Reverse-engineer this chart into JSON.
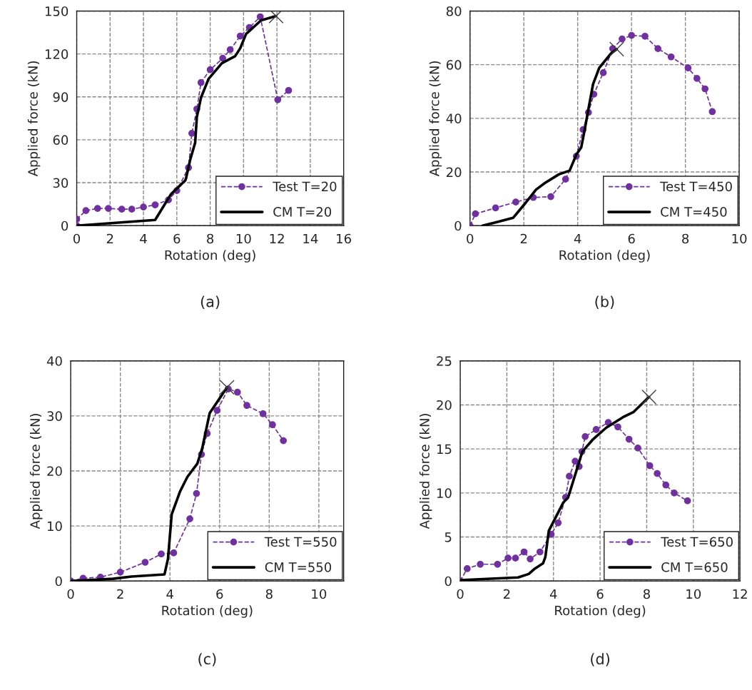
{
  "chart_data": [
    {
      "type": "line",
      "xlabel": "Rotation (deg)",
      "ylabel": "Applied force (kN)",
      "annotations": [
        "(a)"
      ],
      "xlim": [
        0,
        16
      ],
      "xticks": [
        0,
        2,
        4,
        6,
        8,
        10,
        12,
        14,
        16
      ],
      "ylim": [
        0,
        150
      ],
      "yticks": [
        0,
        30,
        60,
        90,
        120,
        150
      ],
      "grid": true,
      "legend": "bottom right",
      "series": [
        {
          "name": "Test T=20",
          "color": "#7030a0",
          "marker": "circle",
          "line_style": "dashed",
          "x": [
            0,
            0,
            0.55,
            1.25,
            1.9,
            2.7,
            3.3,
            4.0,
            4.7,
            5.5,
            6.0,
            6.7,
            6.9,
            7.2,
            7.45,
            8.0,
            8.75,
            9.2,
            9.8,
            10.35,
            11.0,
            12.05,
            12.7
          ],
          "values": [
            0,
            4.5,
            10.5,
            12,
            12,
            11.5,
            11.5,
            13,
            14.5,
            18,
            24.5,
            40.5,
            64.5,
            81.5,
            100,
            109,
            117,
            123,
            132.5,
            138.5,
            146,
            88,
            94.5
          ]
        },
        {
          "name": "CM T=20",
          "color": "#000000",
          "marker": "none",
          "line_style": "solid",
          "x": [
            0,
            4.7,
            5.65,
            6.5,
            6.55,
            6.8,
            7.1,
            7.2,
            7.45,
            7.9,
            8.7,
            9.5,
            9.8,
            10.15,
            11.05,
            11.95
          ],
          "values": [
            0,
            4,
            22,
            31.5,
            33,
            46,
            58,
            76,
            89.5,
            102.5,
            113.5,
            118.5,
            124,
            134,
            143.5,
            146.5
          ]
        },
        {
          "type": "scatter",
          "color": "#404040",
          "marker": "cross",
          "x": [
            11.95
          ],
          "values": [
            146.5
          ]
        }
      ]
    },
    {
      "type": "line",
      "xlabel": "Rotation (deg)",
      "ylabel": "Applied force (kN)",
      "annotations": [
        "(b)"
      ],
      "xlim": [
        0,
        10
      ],
      "xticks": [
        0,
        2,
        4,
        6,
        8,
        10
      ],
      "ylim": [
        0,
        80
      ],
      "yticks": [
        0,
        20,
        40,
        60,
        80
      ],
      "grid": true,
      "legend": "bottom right",
      "series": [
        {
          "name": "Test T=450",
          "color": "#7030a0",
          "marker": "circle",
          "line_style": "dashed",
          "x": [
            0,
            0.2,
            0.95,
            1.7,
            2.35,
            3.0,
            3.55,
            3.95,
            4.2,
            4.4,
            4.6,
            4.95,
            5.3,
            5.65,
            6.0,
            6.5,
            6.98,
            7.47,
            8.1,
            8.43,
            8.73,
            9.0
          ],
          "values": [
            0,
            4.4,
            6.6,
            8.8,
            10.5,
            10.8,
            17.3,
            25.9,
            35.8,
            42.2,
            49,
            57,
            66,
            69.6,
            70.9,
            70.6,
            66,
            62.9,
            58.8,
            54.9,
            51,
            42.5
          ]
        },
        {
          "name": "CM T=450",
          "color": "#000000",
          "marker": "none",
          "line_style": "solid",
          "x": [
            0.47,
            1.1,
            1.6,
            2.0,
            2.45,
            2.8,
            3.3,
            3.7,
            3.95,
            4.13,
            4.26,
            4.4,
            4.57,
            4.8,
            5.23,
            5.45
          ],
          "values": [
            0,
            1.6,
            2.9,
            7.7,
            13.4,
            16,
            19.1,
            20.5,
            26.5,
            29.1,
            35.7,
            43.5,
            52.7,
            58.8,
            64.1,
            65.8
          ]
        },
        {
          "type": "scatter",
          "color": "#404040",
          "marker": "cross",
          "x": [
            5.45
          ],
          "values": [
            65.8
          ]
        }
      ]
    },
    {
      "type": "line",
      "xlabel": "Rotation (deg)",
      "ylabel": "Applied force (kN)",
      "annotations": [
        "(c)"
      ],
      "xlim": [
        0,
        11
      ],
      "xticks": [
        0,
        2,
        4,
        6,
        8,
        10
      ],
      "ylim": [
        0,
        40
      ],
      "yticks": [
        0,
        10,
        20,
        30,
        40
      ],
      "grid": true,
      "legend": "bottom right",
      "series": [
        {
          "name": "Test T=550",
          "color": "#7030a0",
          "marker": "circle",
          "line_style": "dashed",
          "x": [
            0,
            0.5,
            1.2,
            2.0,
            3.0,
            3.65,
            4.15,
            4.8,
            5.07,
            5.27,
            5.5,
            5.9,
            6.35,
            6.72,
            7.1,
            7.75,
            8.13,
            8.57
          ],
          "values": [
            0,
            0.5,
            0.7,
            1.6,
            3.4,
            4.9,
            5.1,
            11.3,
            15.9,
            23,
            26.8,
            31,
            34.9,
            34.3,
            31.9,
            30.4,
            28.4,
            25.5
          ]
        },
        {
          "name": "CM T=550",
          "color": "#000000",
          "marker": "none",
          "line_style": "solid",
          "x": [
            0,
            1.7,
            2.45,
            3.78,
            3.92,
            4.07,
            4.4,
            4.7,
            5.1,
            5.3,
            5.6,
            6.08,
            6.3
          ],
          "values": [
            0,
            0.4,
            0.8,
            1.2,
            4,
            12.1,
            16.2,
            18.9,
            21.3,
            24.1,
            30.5,
            33.7,
            35.2
          ]
        },
        {
          "type": "scatter",
          "color": "#404040",
          "marker": "cross",
          "x": [
            6.3
          ],
          "values": [
            35.2
          ]
        }
      ]
    },
    {
      "type": "line",
      "xlabel": "Rotation (deg)",
      "ylabel": "Applied force (kN)",
      "annotations": [
        "(d)"
      ],
      "xlim": [
        0,
        12
      ],
      "xticks": [
        0,
        2,
        4,
        6,
        8,
        10,
        12
      ],
      "ylim": [
        0,
        25
      ],
      "yticks": [
        0,
        5,
        10,
        15,
        20,
        25
      ],
      "grid": true,
      "legend": "bottom right",
      "series": [
        {
          "name": "Test T=650",
          "color": "#7030a0",
          "marker": "circle",
          "line_style": "dashed",
          "x": [
            0,
            0.3,
            0.86,
            1.6,
            2.05,
            2.37,
            2.74,
            3.0,
            3.42,
            3.9,
            4.2,
            4.52,
            4.68,
            4.93,
            5.1,
            5.22,
            5.36,
            5.83,
            6.35,
            6.76,
            7.24,
            7.62,
            8.13,
            8.45,
            8.82,
            9.18,
            9.75
          ],
          "values": [
            0,
            1.4,
            1.9,
            1.9,
            2.6,
            2.6,
            3.3,
            2.5,
            3.3,
            5.3,
            6.6,
            9.5,
            11.9,
            13.6,
            13.0,
            14.7,
            16.4,
            17.2,
            18.0,
            17.5,
            16.1,
            15.1,
            13.1,
            12.2,
            10.9,
            10.0,
            9.1
          ]
        },
        {
          "name": "CM T=650",
          "color": "#000000",
          "marker": "none",
          "line_style": "solid",
          "x": [
            0,
            2.48,
            2.94,
            3.2,
            3.55,
            3.65,
            3.8,
            4.42,
            4.63,
            4.83,
            5.24,
            5.7,
            6.26,
            6.98,
            7.44,
            8.1
          ],
          "values": [
            0.1,
            0.4,
            0.8,
            1.4,
            2.0,
            2.7,
            5.7,
            8.9,
            9.5,
            11.2,
            14.7,
            16.1,
            17.4,
            18.6,
            19.2,
            20.9
          ]
        },
        {
          "type": "scatter",
          "color": "#404040",
          "marker": "cross",
          "x": [
            8.1
          ],
          "values": [
            20.9
          ]
        }
      ]
    }
  ]
}
